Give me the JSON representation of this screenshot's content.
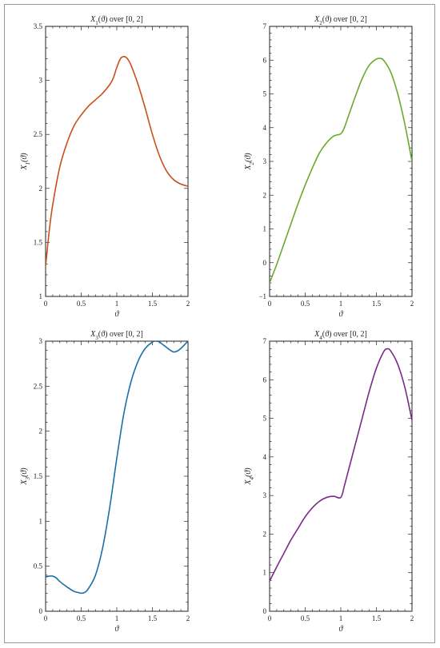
{
  "chart_data": [
    {
      "type": "line",
      "title": "X1(ϑ) over [0, 2]",
      "xlabel": "ϑ",
      "ylabel": "X1(ϑ)",
      "xlim": [
        0,
        2
      ],
      "ylim": [
        1,
        3.5
      ],
      "xticks": [
        0,
        0.5,
        1,
        1.5,
        2
      ],
      "xtick_labels": [
        "0",
        "0.5",
        "1",
        "1.5",
        "2"
      ],
      "yticks": [
        1,
        1.5,
        2,
        2.5,
        3,
        3.5
      ],
      "ytick_labels": [
        "1",
        "1.5",
        "2",
        "2.5",
        "3",
        "3.5"
      ],
      "grid": false,
      "color": "#c8501a",
      "series": [
        {
          "x": [
            0,
            0.05,
            0.1,
            0.2,
            0.3,
            0.4,
            0.5,
            0.6,
            0.7,
            0.8,
            0.9,
            0.95,
            1.0,
            1.05,
            1.1,
            1.15,
            1.2,
            1.3,
            1.4,
            1.5,
            1.6,
            1.7,
            1.8,
            1.9,
            2.0
          ],
          "y": [
            1.28,
            1.6,
            1.85,
            2.2,
            2.42,
            2.58,
            2.68,
            2.76,
            2.82,
            2.88,
            2.96,
            3.02,
            3.12,
            3.2,
            3.22,
            3.2,
            3.14,
            2.96,
            2.74,
            2.5,
            2.3,
            2.16,
            2.08,
            2.04,
            2.02
          ]
        }
      ]
    },
    {
      "type": "line",
      "title": "X2(ϑ) over [0, 2]",
      "xlabel": "ϑ",
      "ylabel": "X2(ϑ)",
      "xlim": [
        0,
        2
      ],
      "ylim": [
        -1,
        7
      ],
      "xticks": [
        0,
        0.5,
        1,
        1.5,
        2
      ],
      "xtick_labels": [
        "0",
        "0.5",
        "1",
        "1.5",
        "2"
      ],
      "yticks": [
        -1,
        0,
        1,
        2,
        3,
        4,
        5,
        6,
        7
      ],
      "ytick_labels": [
        "−1",
        "0",
        "1",
        "2",
        "3",
        "4",
        "5",
        "6",
        "7"
      ],
      "grid": false,
      "color": "#6aaa2a",
      "series": [
        {
          "x": [
            0,
            0.1,
            0.2,
            0.3,
            0.4,
            0.5,
            0.6,
            0.7,
            0.8,
            0.9,
            1.0,
            1.05,
            1.1,
            1.2,
            1.3,
            1.4,
            1.5,
            1.55,
            1.6,
            1.7,
            1.8,
            1.9,
            2.0
          ],
          "y": [
            -0.6,
            -0.05,
            0.55,
            1.15,
            1.75,
            2.3,
            2.8,
            3.25,
            3.55,
            3.75,
            3.82,
            4.0,
            4.3,
            4.9,
            5.45,
            5.85,
            6.03,
            6.05,
            6.0,
            5.65,
            5.0,
            4.1,
            3.0
          ]
        }
      ]
    },
    {
      "type": "line",
      "title": "X3(ϑ) over [0, 2]",
      "xlabel": "ϑ",
      "ylabel": "X3(ϑ)",
      "xlim": [
        0,
        2
      ],
      "ylim": [
        0,
        3
      ],
      "xticks": [
        0,
        0.5,
        1,
        1.5,
        2
      ],
      "xtick_labels": [
        "0",
        "0.5",
        "1",
        "1.5",
        "2"
      ],
      "yticks": [
        0,
        0.5,
        1,
        1.5,
        2,
        2.5,
        3
      ],
      "ytick_labels": [
        "0",
        "0.5",
        "1",
        "1.5",
        "2",
        "2.5",
        "3"
      ],
      "grid": false,
      "color": "#1a6fa8",
      "series": [
        {
          "x": [
            0,
            0.05,
            0.1,
            0.15,
            0.2,
            0.3,
            0.4,
            0.45,
            0.5,
            0.55,
            0.6,
            0.7,
            0.8,
            0.9,
            1.0,
            1.1,
            1.2,
            1.3,
            1.4,
            1.5,
            1.55,
            1.6,
            1.65,
            1.7,
            1.75,
            1.8,
            1.85,
            1.9,
            1.95,
            2.0
          ],
          "y": [
            0.38,
            0.39,
            0.39,
            0.37,
            0.33,
            0.27,
            0.22,
            0.21,
            0.2,
            0.21,
            0.25,
            0.4,
            0.7,
            1.15,
            1.7,
            2.2,
            2.55,
            2.78,
            2.92,
            2.99,
            3.0,
            2.99,
            2.96,
            2.93,
            2.9,
            2.88,
            2.89,
            2.92,
            2.96,
            3.0
          ]
        }
      ]
    },
    {
      "type": "line",
      "title": "X4(ϑ) over [0, 2]",
      "xlabel": "ϑ",
      "ylabel": "X4(ϑ)",
      "xlim": [
        0,
        2
      ],
      "ylim": [
        0,
        7
      ],
      "xticks": [
        0,
        0.5,
        1,
        1.5,
        2
      ],
      "xtick_labels": [
        "0",
        "0.5",
        "1",
        "1.5",
        "2"
      ],
      "yticks": [
        0,
        1,
        2,
        3,
        4,
        5,
        6,
        7
      ],
      "ytick_labels": [
        "0",
        "1",
        "2",
        "3",
        "4",
        "5",
        "6",
        "7"
      ],
      "grid": false,
      "color": "#7a2a8a",
      "series": [
        {
          "x": [
            0,
            0.1,
            0.2,
            0.3,
            0.4,
            0.5,
            0.6,
            0.7,
            0.8,
            0.9,
            1.0,
            1.05,
            1.1,
            1.2,
            1.3,
            1.4,
            1.5,
            1.6,
            1.65,
            1.7,
            1.8,
            1.9,
            2.0
          ],
          "y": [
            0.78,
            1.15,
            1.5,
            1.85,
            2.15,
            2.45,
            2.68,
            2.85,
            2.95,
            2.98,
            2.95,
            3.25,
            3.6,
            4.3,
            5.0,
            5.7,
            6.3,
            6.72,
            6.8,
            6.75,
            6.4,
            5.8,
            4.95
          ]
        }
      ]
    }
  ]
}
